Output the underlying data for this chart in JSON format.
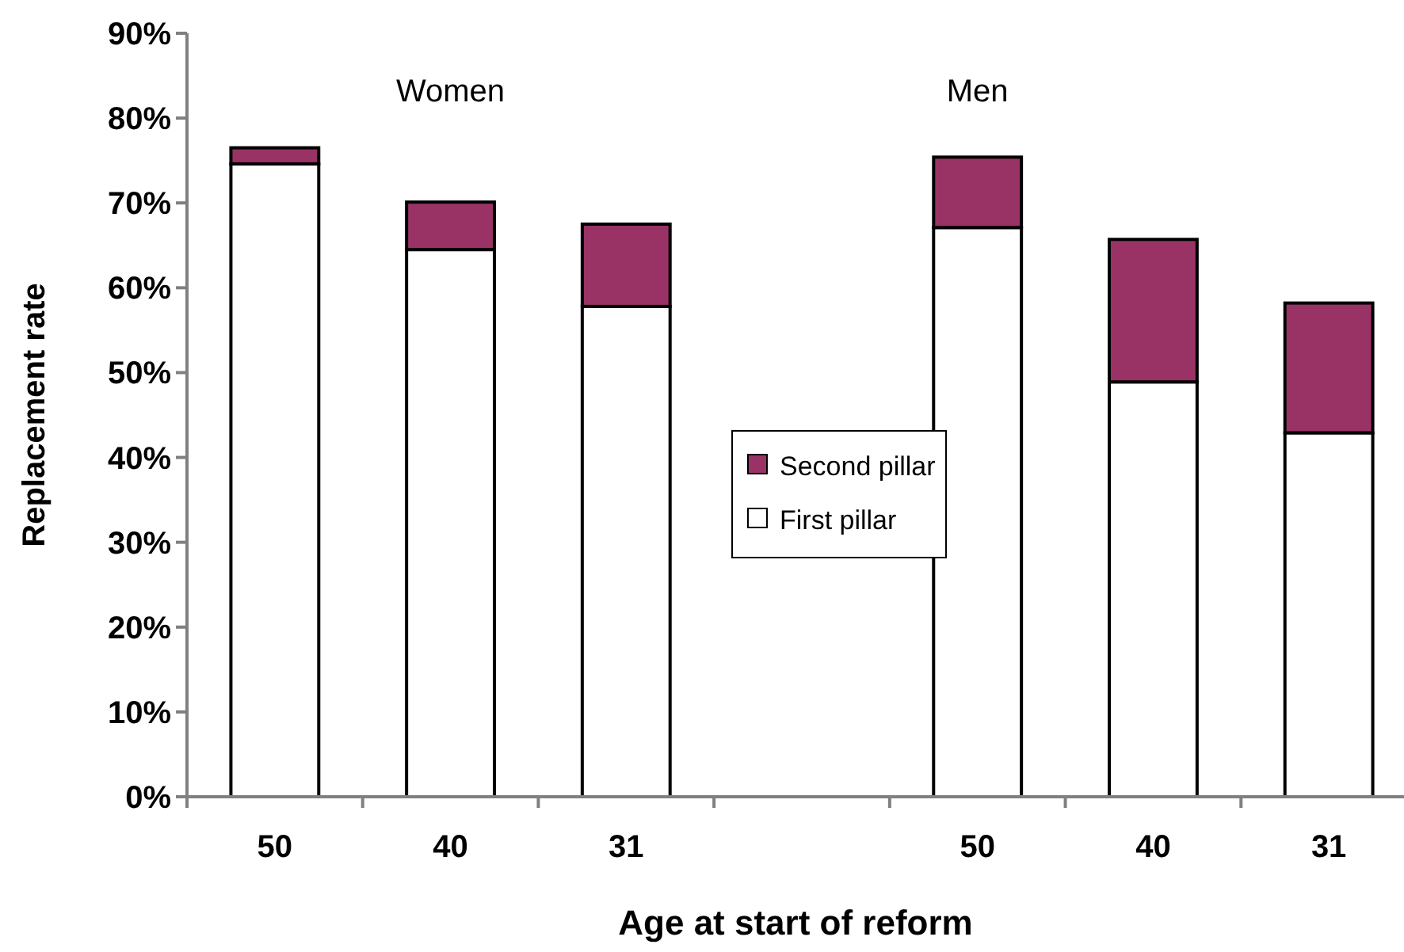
{
  "chart_data": {
    "type": "bar",
    "stacked": true,
    "xlabel": "Age at start of reform",
    "ylabel": "Replacement rate",
    "categories": [
      "50",
      "40",
      "31",
      null,
      "50",
      "40",
      "31"
    ],
    "series": [
      {
        "name": "First pillar",
        "color": "#ffffff",
        "values": [
          74.6,
          64.5,
          57.8,
          null,
          67.1,
          48.9,
          42.9
        ]
      },
      {
        "name": "Second pillar",
        "color": "#993366",
        "values": [
          1.9,
          5.6,
          9.7,
          null,
          8.3,
          16.8,
          15.3
        ]
      }
    ],
    "ylim": [
      0,
      90
    ],
    "yticks": [
      {
        "value": 0,
        "label": "0%"
      },
      {
        "value": 10,
        "label": "10%"
      },
      {
        "value": 20,
        "label": "20%"
      },
      {
        "value": 30,
        "label": "30%"
      },
      {
        "value": 40,
        "label": "40%"
      },
      {
        "value": 50,
        "label": "50%"
      },
      {
        "value": 60,
        "label": "60%"
      },
      {
        "value": 70,
        "label": "70%"
      },
      {
        "value": 80,
        "label": "80%"
      },
      {
        "value": 90,
        "label": "90%"
      }
    ],
    "annotations": [
      "Women",
      "Men"
    ],
    "legend": "center",
    "grid": false
  }
}
